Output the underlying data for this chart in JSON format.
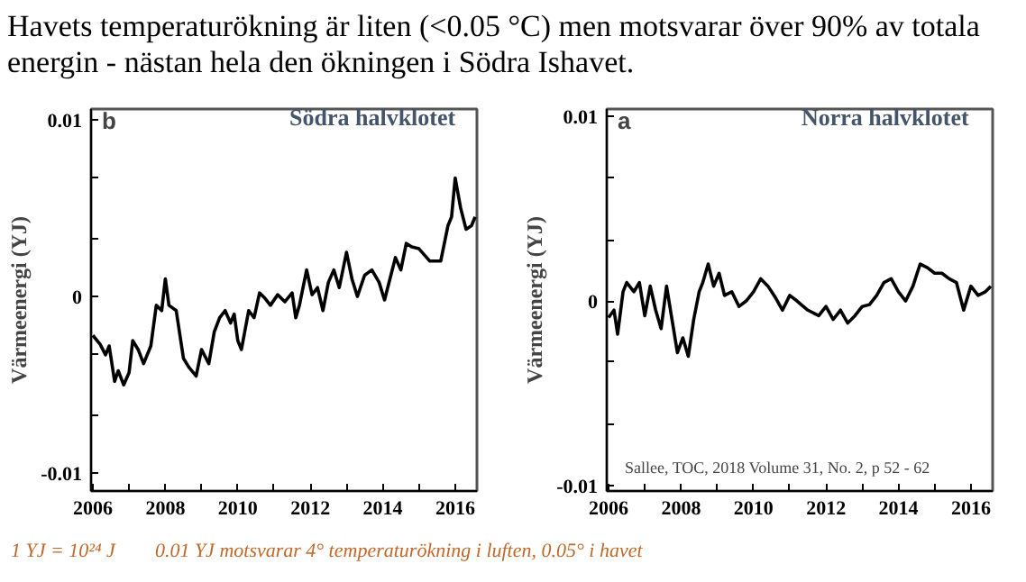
{
  "chart_data": [
    {
      "type": "line",
      "title": "Södra halvklotet",
      "ylabel": "Värmeenergi (YJ)",
      "grid": false,
      "annotations": [
        "b",
        "Havets temperaturökning är liten (<0.05 °C) men motsvarar över 90% av totala energin - nästan hela den ökningen i Södra Ishavet.",
        "1 YJ = 10²⁴ J",
        "0.01 YJ motsvarar 4° temperaturökning i luften, 0.05° i havet"
      ],
      "xlim": [
        2005.95,
        2016.6
      ],
      "ylim": [
        -0.011,
        0.0106
      ],
      "xticks": [
        {
          "value": 2006,
          "label": "2006"
        },
        {
          "value": 2007,
          "label": null
        },
        {
          "value": 2008,
          "label": "2008"
        },
        {
          "value": 2009,
          "label": null
        },
        {
          "value": 2010,
          "label": "2010"
        },
        {
          "value": 2011,
          "label": null
        },
        {
          "value": 2012,
          "label": "2012"
        },
        {
          "value": 2013,
          "label": null
        },
        {
          "value": 2014,
          "label": "2014"
        },
        {
          "value": 2015,
          "label": null
        },
        {
          "value": 2016,
          "label": "2016"
        }
      ],
      "yticks": [
        {
          "value": -0.01,
          "label": "-0.01"
        },
        {
          "value": -0.0067,
          "label": null
        },
        {
          "value": -0.0033,
          "label": null
        },
        {
          "value": 0,
          "label": "0"
        },
        {
          "value": 0.0033,
          "label": null
        },
        {
          "value": 0.0067,
          "label": null
        },
        {
          "value": 0.01,
          "label": "0.01"
        }
      ],
      "series": [
        {
          "color": "#000000",
          "x": [
            2006.0,
            2006.2,
            2006.35,
            2006.45,
            2006.6,
            2006.7,
            2006.85,
            2007.0,
            2007.1,
            2007.25,
            2007.4,
            2007.6,
            2007.75,
            2007.9,
            2008.0,
            2008.1,
            2008.3,
            2008.5,
            2008.65,
            2008.85,
            2009.0,
            2009.2,
            2009.35,
            2009.5,
            2009.65,
            2009.8,
            2009.9,
            2010.0,
            2010.1,
            2010.3,
            2010.45,
            2010.6,
            2010.75,
            2010.9,
            2011.1,
            2011.3,
            2011.5,
            2011.6,
            2011.7,
            2011.9,
            2012.05,
            2012.2,
            2012.35,
            2012.5,
            2012.65,
            2012.8,
            2013.0,
            2013.15,
            2013.3,
            2013.5,
            2013.7,
            2013.9,
            2014.05,
            2014.2,
            2014.35,
            2014.5,
            2014.65,
            2014.8,
            2015.0,
            2015.3,
            2015.6,
            2015.8,
            2015.9,
            2016.0,
            2016.15,
            2016.3,
            2016.45,
            2016.55
          ],
          "values": [
            -0.0022,
            -0.0027,
            -0.0033,
            -0.0028,
            -0.0048,
            -0.0042,
            -0.005,
            -0.0043,
            -0.0025,
            -0.003,
            -0.0038,
            -0.0028,
            -0.0005,
            -0.0008,
            0.001,
            -0.0005,
            -0.0008,
            -0.0035,
            -0.004,
            -0.0045,
            -0.003,
            -0.0038,
            -0.002,
            -0.0012,
            -0.0008,
            -0.0015,
            -0.001,
            -0.0025,
            -0.003,
            -0.0008,
            -0.0012,
            0.0002,
            -0.0001,
            -0.0005,
            0.0001,
            -0.0003,
            0.0002,
            -0.0012,
            -0.0005,
            0.0015,
            0.0001,
            0.0005,
            -0.0008,
            0.0008,
            0.0015,
            0.0005,
            0.0025,
            0.001,
            0.0,
            0.0012,
            0.0015,
            0.0008,
            -0.0002,
            0.001,
            0.0022,
            0.0015,
            0.003,
            0.0028,
            0.0027,
            0.002,
            0.002,
            0.004,
            0.0045,
            0.0067,
            0.005,
            0.0038,
            0.004,
            0.0045
          ]
        }
      ]
    },
    {
      "type": "line",
      "title": "Norra halvklotet",
      "ylabel": "Värmeenergi (YJ)",
      "grid": false,
      "annotations": [
        "a",
        "Sallee, TOC, 2018 Volume 31, No. 2, p 52 - 62"
      ],
      "xlim": [
        2005.95,
        2016.6
      ],
      "ylim": [
        -0.0103,
        0.0104
      ],
      "xticks": [
        {
          "value": 2006,
          "label": "2006"
        },
        {
          "value": 2007,
          "label": null
        },
        {
          "value": 2008,
          "label": "2008"
        },
        {
          "value": 2009,
          "label": null
        },
        {
          "value": 2010,
          "label": "2010"
        },
        {
          "value": 2011,
          "label": null
        },
        {
          "value": 2012,
          "label": "2012"
        },
        {
          "value": 2013,
          "label": null
        },
        {
          "value": 2014,
          "label": "2014"
        },
        {
          "value": 2015,
          "label": null
        },
        {
          "value": 2016,
          "label": "2016"
        }
      ],
      "yticks": [
        {
          "value": -0.01,
          "label": "-0.01"
        },
        {
          "value": -0.0067,
          "label": null
        },
        {
          "value": -0.0033,
          "label": null
        },
        {
          "value": 0,
          "label": "0"
        },
        {
          "value": 0.0033,
          "label": null
        },
        {
          "value": 0.0067,
          "label": null
        },
        {
          "value": 0.01,
          "label": "0.01"
        }
      ],
      "series": [
        {
          "color": "#000000",
          "x": [
            2006.0,
            2006.15,
            2006.25,
            2006.4,
            2006.5,
            2006.7,
            2006.85,
            2007.0,
            2007.15,
            2007.3,
            2007.45,
            2007.6,
            2007.75,
            2007.9,
            2008.05,
            2008.2,
            2008.35,
            2008.5,
            2008.6,
            2008.75,
            2008.9,
            2009.05,
            2009.2,
            2009.4,
            2009.6,
            2009.8,
            2010.0,
            2010.2,
            2010.4,
            2010.6,
            2010.8,
            2011.0,
            2011.2,
            2011.5,
            2011.8,
            2012.0,
            2012.2,
            2012.4,
            2012.6,
            2012.8,
            2013.0,
            2013.2,
            2013.4,
            2013.6,
            2013.8,
            2014.0,
            2014.2,
            2014.4,
            2014.6,
            2014.8,
            2015.0,
            2015.2,
            2015.4,
            2015.6,
            2015.8,
            2016.0,
            2016.2,
            2016.4,
            2016.55
          ],
          "values": [
            -0.0009,
            -0.0005,
            -0.0018,
            0.0005,
            0.001,
            0.0005,
            0.001,
            -0.0008,
            0.0008,
            -0.0005,
            -0.0015,
            0.0008,
            -0.001,
            -0.0028,
            -0.002,
            -0.003,
            -0.001,
            0.0005,
            0.001,
            0.002,
            0.0008,
            0.0015,
            0.0003,
            0.0005,
            -0.0003,
            0.0,
            0.0005,
            0.0012,
            0.0008,
            0.0002,
            -0.0005,
            0.0003,
            0.0,
            -0.0005,
            -0.0008,
            -0.0003,
            -0.001,
            -0.0005,
            -0.0012,
            -0.0008,
            -0.0003,
            -0.0002,
            0.0003,
            0.001,
            0.0012,
            0.0005,
            0.0,
            0.0008,
            0.002,
            0.0018,
            0.0015,
            0.0015,
            0.0012,
            0.001,
            -0.0005,
            0.0008,
            0.0003,
            0.0005,
            0.0008
          ]
        }
      ]
    }
  ]
}
